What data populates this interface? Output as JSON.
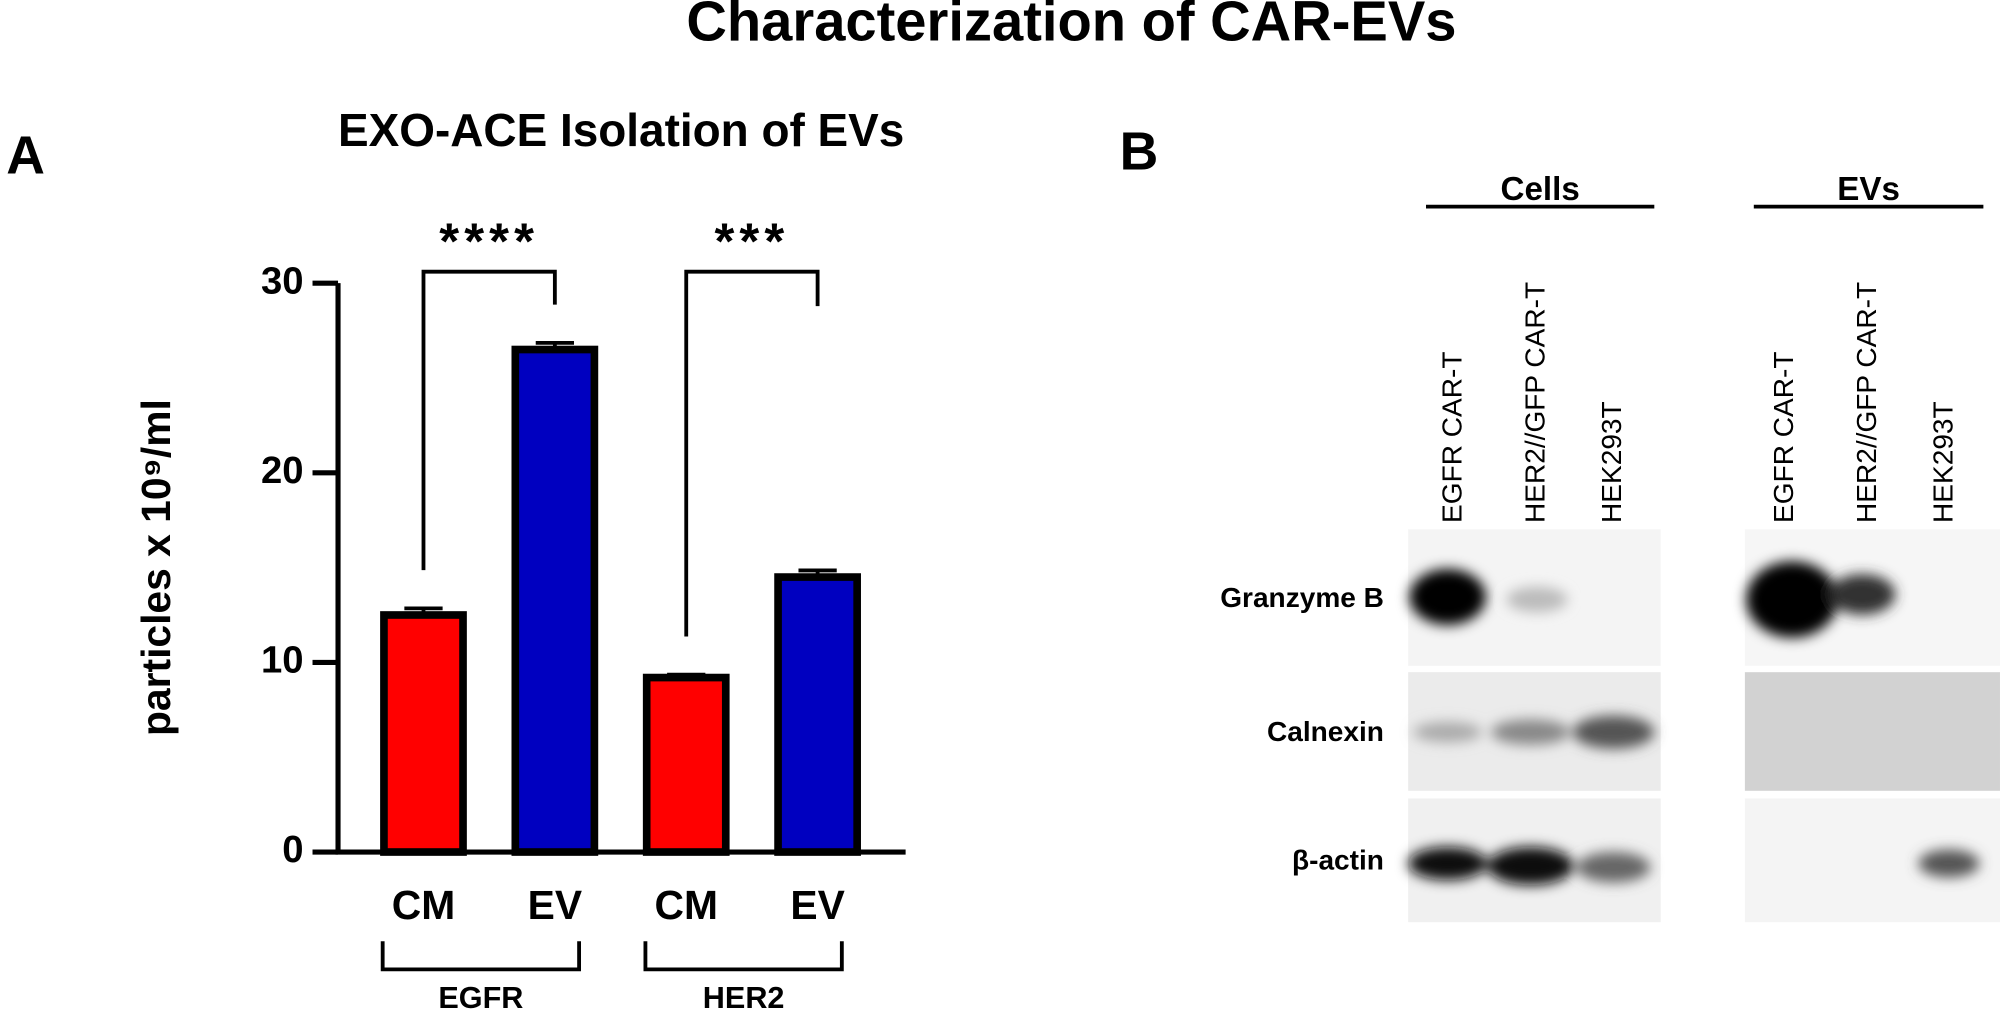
{
  "title": "Characterization of CAR-EVs",
  "chart_data": {
    "type": "bar",
    "panel_label": "A",
    "title": "EXO-ACE Isolation of EVs",
    "ylabel": "particles x 10⁹/ml",
    "categories": [
      "CM",
      "EV",
      "CM",
      "EV"
    ],
    "values": [
      12.5,
      26.5,
      9.2,
      14.5
    ],
    "errors": [
      0.35,
      0.35,
      0.15,
      0.35
    ],
    "colors": [
      "#ff0000",
      "#0000c0",
      "#ff0000",
      "#0000c0"
    ],
    "groups": [
      "EGFR",
      "HER2"
    ],
    "annotations": [
      "****",
      "***"
    ],
    "ylim": [
      0,
      30
    ],
    "yticks": [
      0,
      10,
      20,
      30
    ]
  },
  "panel_b": {
    "label": "B",
    "groups": [
      {
        "name": "Cells",
        "lanes": [
          "EGFR CAR-T",
          "HER2//GFP CAR-T",
          "HEK293T"
        ]
      },
      {
        "name": "EVs",
        "lanes": [
          "EGFR CAR-T",
          "HER2//GFP CAR-T",
          "HEK293T"
        ]
      }
    ],
    "rows": [
      "Granzyme B",
      "Calnexin",
      "β-actin"
    ]
  }
}
